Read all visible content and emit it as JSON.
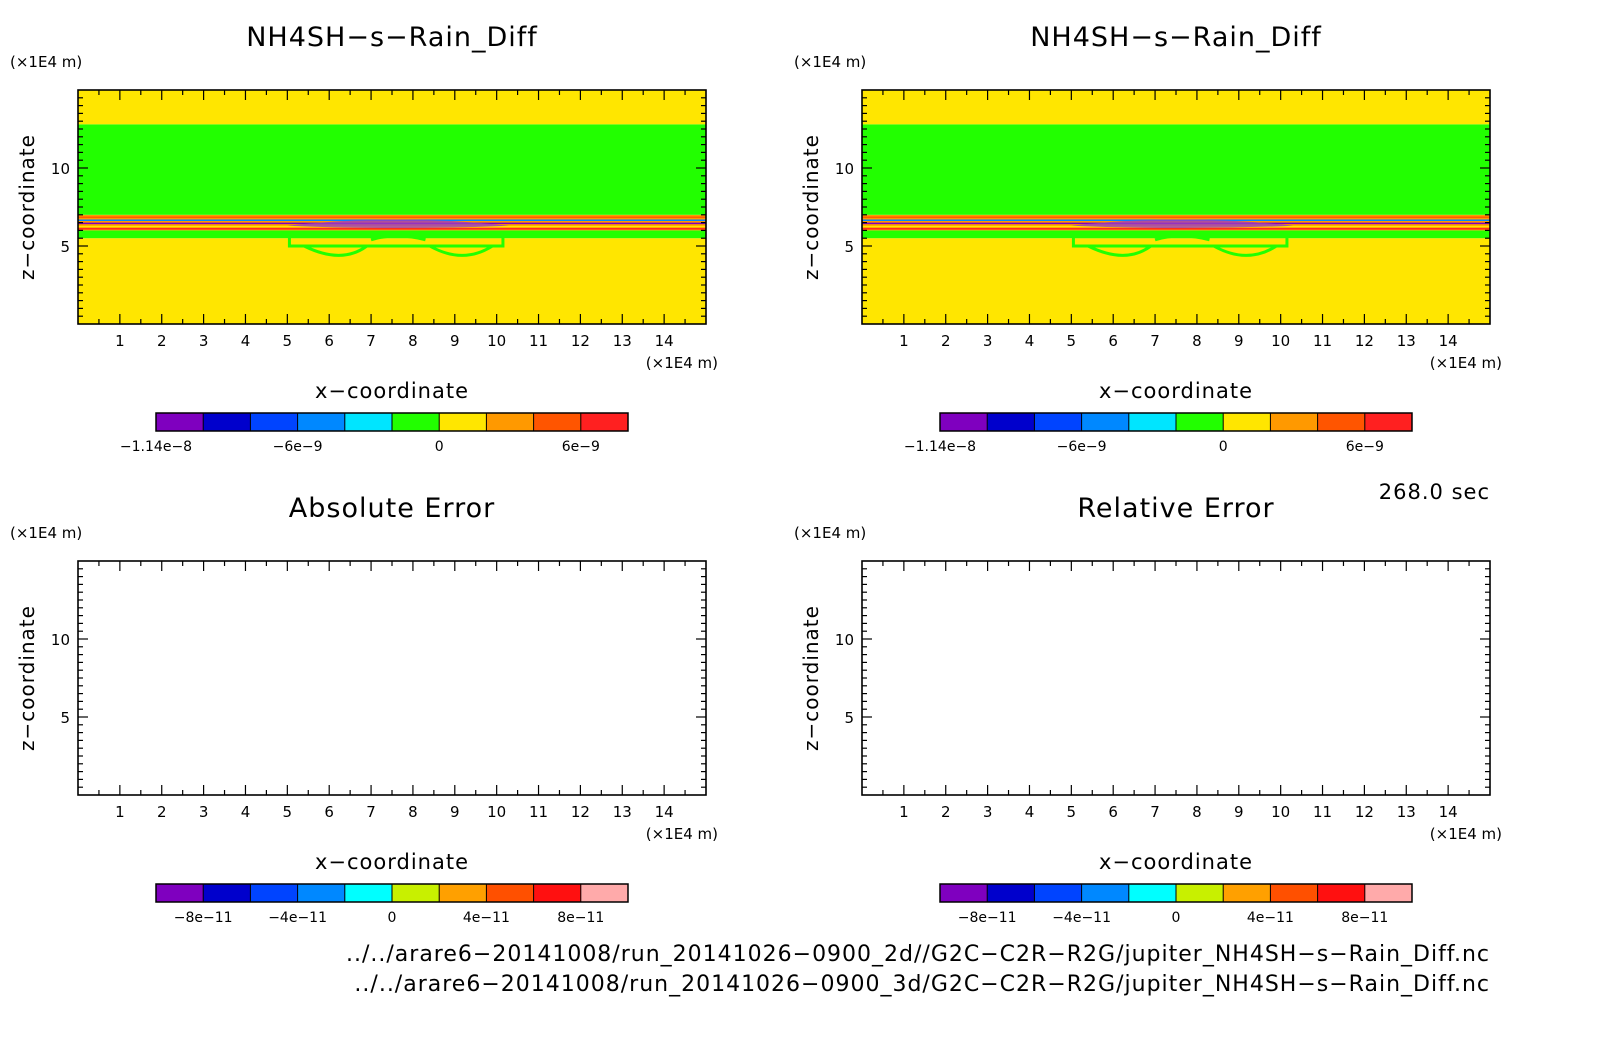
{
  "chart_data": [
    {
      "type": "heatmap",
      "title": "NH4SH−s−Rain_Diff",
      "xlabel": "x−coordinate",
      "ylabel": "z−coordinate",
      "x_unit": "(×1E4 m)",
      "y_unit": "(×1E4 m)",
      "xlim": [
        0,
        15
      ],
      "ylim": [
        0,
        15
      ],
      "xticks": [
        1,
        2,
        3,
        4,
        5,
        6,
        7,
        8,
        9,
        10,
        11,
        12,
        13,
        14
      ],
      "yticks": [
        5,
        10
      ],
      "bands": [
        {
          "z0": 0,
          "z1": 5.5,
          "color": "#ffe600"
        },
        {
          "z0": 5.5,
          "z1": 6.0,
          "color": "#22ff00"
        },
        {
          "z0": 6.0,
          "z1": 7.0,
          "color": "#ff9900"
        },
        {
          "z0": 7.0,
          "z1": 12.8,
          "color": "#22ff00"
        },
        {
          "z0": 12.8,
          "z1": 15,
          "color": "#ffe600"
        }
      ],
      "colorbar": {
        "colors": [
          "#7f00bf",
          "#0000cc",
          "#0044ff",
          "#0088ff",
          "#00e5ff",
          "#22ff00",
          "#ffe600",
          "#ff9900",
          "#ff5500",
          "#ff2020"
        ],
        "ticks": [
          "−1.14e−8",
          "−6e−9",
          "0",
          "6e−9"
        ],
        "tick_positions": [
          0,
          3,
          6,
          9
        ]
      }
    },
    {
      "type": "heatmap",
      "title": "NH4SH−s−Rain_Diff",
      "xlabel": "x−coordinate",
      "ylabel": "z−coordinate",
      "x_unit": "(×1E4 m)",
      "y_unit": "(×1E4 m)",
      "xlim": [
        0,
        15
      ],
      "ylim": [
        0,
        15
      ],
      "xticks": [
        1,
        2,
        3,
        4,
        5,
        6,
        7,
        8,
        9,
        10,
        11,
        12,
        13,
        14
      ],
      "yticks": [
        5,
        10
      ],
      "bands": [
        {
          "z0": 0,
          "z1": 5.5,
          "color": "#ffe600"
        },
        {
          "z0": 5.5,
          "z1": 6.0,
          "color": "#22ff00"
        },
        {
          "z0": 6.0,
          "z1": 7.0,
          "color": "#ff9900"
        },
        {
          "z0": 7.0,
          "z1": 12.8,
          "color": "#22ff00"
        },
        {
          "z0": 12.8,
          "z1": 15,
          "color": "#ffe600"
        }
      ],
      "colorbar": {
        "colors": [
          "#7f00bf",
          "#0000cc",
          "#0044ff",
          "#0088ff",
          "#00e5ff",
          "#22ff00",
          "#ffe600",
          "#ff9900",
          "#ff5500",
          "#ff2020"
        ],
        "ticks": [
          "−1.14e−8",
          "−6e−9",
          "0",
          "6e−9"
        ],
        "tick_positions": [
          0,
          3,
          6,
          9
        ]
      }
    },
    {
      "type": "heatmap",
      "title": "Absolute Error",
      "xlabel": "x−coordinate",
      "ylabel": "z−coordinate",
      "x_unit": "(×1E4 m)",
      "y_unit": "(×1E4 m)",
      "xlim": [
        0,
        15
      ],
      "ylim": [
        0,
        15
      ],
      "xticks": [
        1,
        2,
        3,
        4,
        5,
        6,
        7,
        8,
        9,
        10,
        11,
        12,
        13,
        14
      ],
      "yticks": [
        5,
        10
      ],
      "bands": [],
      "colorbar": {
        "colors": [
          "#7f00bf",
          "#0000cc",
          "#0044ff",
          "#0088ff",
          "#00ffff",
          "#c8f000",
          "#ffa000",
          "#ff5000",
          "#ff1010",
          "#ffaaaa"
        ],
        "ticks": [
          "−8e−11",
          "−4e−11",
          "0",
          "4e−11",
          "8e−11"
        ],
        "tick_positions": [
          1,
          3,
          5,
          7,
          9
        ]
      }
    },
    {
      "type": "heatmap",
      "title": "Relative Error",
      "xlabel": "x−coordinate",
      "ylabel": "z−coordinate",
      "x_unit": "(×1E4 m)",
      "y_unit": "(×1E4 m)",
      "xlim": [
        0,
        15
      ],
      "ylim": [
        0,
        15
      ],
      "xticks": [
        1,
        2,
        3,
        4,
        5,
        6,
        7,
        8,
        9,
        10,
        11,
        12,
        13,
        14
      ],
      "yticks": [
        5,
        10
      ],
      "bands": [],
      "colorbar": {
        "colors": [
          "#7f00bf",
          "#0000cc",
          "#0044ff",
          "#0088ff",
          "#00ffff",
          "#c8f000",
          "#ffa000",
          "#ff5000",
          "#ff1010",
          "#ffaaaa"
        ],
        "ticks": [
          "−8e−11",
          "−4e−11",
          "0",
          "4e−11",
          "8e−11"
        ],
        "tick_positions": [
          1,
          3,
          5,
          7,
          9
        ]
      }
    }
  ],
  "time_label": "268.0 sec",
  "source_files": [
    "../../arare6−20141008/run_20141026−0900_2d//G2C−C2R−R2G/jupiter_NH4SH−s−Rain_Diff.nc",
    "../../arare6−20141008/run_20141026−0900_3d/G2C−C2R−R2G/jupiter_NH4SH−s−Rain_Diff.nc"
  ]
}
